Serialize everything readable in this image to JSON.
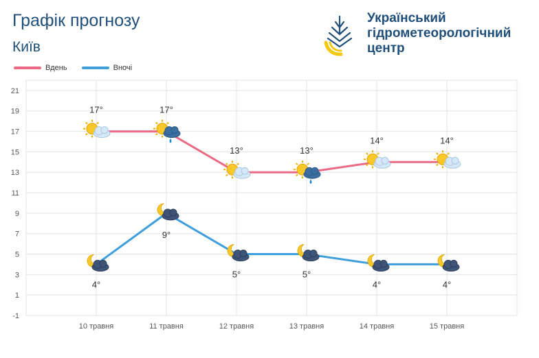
{
  "header": {
    "title": "Графік прогнозу",
    "city": "Київ",
    "org_lines": [
      "Український",
      "гідрометеорологічний",
      "центр"
    ]
  },
  "colors": {
    "day": "#ea6a84",
    "night": "#3f9fdc",
    "grid": "#e3e3e3",
    "text": "#333333"
  },
  "chart_data": {
    "type": "line",
    "categories": [
      "10 травня",
      "11 травня",
      "12 травня",
      "13 травня",
      "14 травня",
      "15 травня"
    ],
    "series": [
      {
        "name": "Вдень",
        "values": [
          17,
          17,
          13,
          13,
          14,
          14
        ],
        "labels": [
          "17°",
          "17°",
          "13°",
          "13°",
          "14°",
          "14°"
        ],
        "icons": [
          "sun-cloud-icon",
          "sun-cloud-rain-icon",
          "sun-cloud-icon",
          "sun-cloud-rain-icon",
          "sun-cloud-icon",
          "sun-cloud-icon"
        ]
      },
      {
        "name": "Вночі",
        "values": [
          4,
          9,
          5,
          5,
          4,
          4
        ],
        "labels": [
          "4°",
          "9°",
          "5°",
          "5°",
          "4°",
          "4°"
        ],
        "icons": [
          "moon-cloud-icon",
          "moon-cloud-icon",
          "moon-cloud-icon",
          "moon-cloud-icon",
          "moon-cloud-icon",
          "moon-cloud-icon"
        ]
      }
    ],
    "yticks": [
      21,
      19,
      17,
      15,
      13,
      11,
      9,
      7,
      5,
      3,
      1,
      -1
    ],
    "ylim": [
      -1,
      22
    ],
    "grid": true,
    "legend": "top-left"
  }
}
